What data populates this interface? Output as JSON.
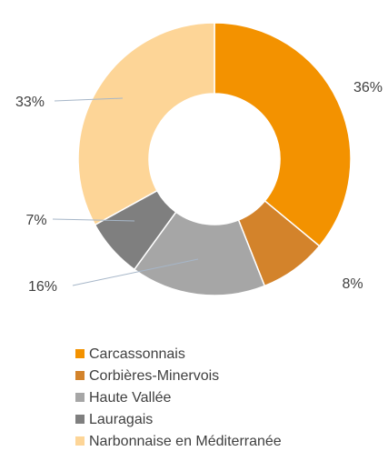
{
  "chart_data": {
    "type": "pie",
    "categories": [
      "Carcassonnais",
      "Corbières-Minervois",
      "Haute Vallée",
      "Lauragais",
      "Narbonnaise en Méditerranée"
    ],
    "values": [
      36,
      8,
      16,
      7,
      33
    ],
    "value_labels": [
      "36%",
      "8%",
      "16%",
      "7%",
      "33%"
    ],
    "colors": [
      "#F39200",
      "#D3832B",
      "#A6A6A6",
      "#7F7F7F",
      "#FDD597"
    ],
    "legend": "bottom"
  }
}
